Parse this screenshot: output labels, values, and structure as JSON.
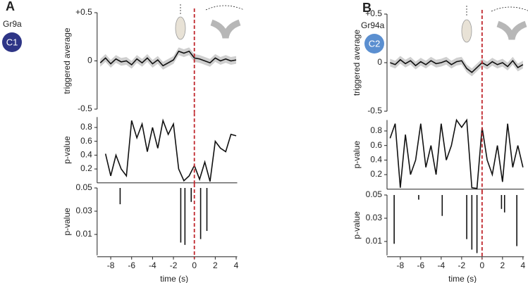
{
  "panels": [
    {
      "letter": "A",
      "genotype": "Gr9a",
      "cluster": "C1",
      "cluster_color": "#2e3586"
    },
    {
      "letter": "B",
      "genotype": "Gr94a",
      "cluster": "C2",
      "cluster_color": "#5b8fd0"
    }
  ],
  "chart_data": [
    {
      "type": "line",
      "ylabel": "triggered average",
      "color": "#111111",
      "band_color": "#cfcfcf",
      "error": 0.04,
      "x": [
        -9,
        -8.5,
        -8,
        -7.5,
        -7,
        -6.5,
        -6,
        -5.5,
        -5,
        -4.5,
        -4,
        -3.5,
        -3,
        -2.5,
        -2,
        -1.5,
        -1,
        -0.5,
        0,
        0.5,
        1,
        1.5,
        2,
        2.5,
        3,
        3.5,
        4
      ],
      "values": [
        -0.02,
        0.03,
        -0.03,
        0.02,
        -0.01,
        0.0,
        -0.04,
        0.02,
        -0.02,
        0.03,
        -0.03,
        0.01,
        -0.05,
        -0.02,
        0.01,
        0.1,
        0.08,
        0.1,
        0.03,
        0.02,
        0.0,
        -0.02,
        0.03,
        0.0,
        0.02,
        0.0,
        0.01
      ],
      "xlim": [
        -9.3,
        4.1
      ],
      "ylim": [
        -0.5,
        0.5
      ],
      "yticks": [
        {
          "value": 0.5,
          "label": "+0.5"
        },
        0,
        -0.5
      ],
      "vline": 0,
      "vline_color": "#c0272d"
    },
    {
      "type": "line",
      "ylabel": "p-value",
      "color": "#111111",
      "x": [
        -9,
        -8.5,
        -8,
        -7.5,
        -7,
        -6.5,
        -6,
        -5.5,
        -5,
        -4.5,
        -4,
        -3.5,
        -3,
        -2.5,
        -2,
        -1.5,
        -1,
        -0.5,
        0,
        0.5,
        1,
        1.5,
        2,
        2.5,
        3,
        3.5,
        4
      ],
      "values": [
        null,
        0.42,
        0.1,
        0.4,
        0.2,
        0.1,
        0.9,
        0.65,
        0.85,
        0.45,
        0.8,
        0.5,
        0.9,
        0.7,
        0.85,
        0.2,
        0.03,
        0.1,
        0.25,
        0.05,
        0.3,
        0.02,
        0.6,
        0.5,
        0.45,
        0.7,
        0.68
      ],
      "xlim": [
        -9.3,
        4.1
      ],
      "ylim": [
        0,
        0.95
      ],
      "yticks": [
        0.2,
        0.4,
        0.6,
        0.8
      ],
      "vline": 0,
      "vline_color": "#c0272d"
    },
    {
      "type": "spike",
      "ylabel": "p-value",
      "xlabel": "time (s)",
      "color": "#111111",
      "x": [
        -7.1,
        -1.3,
        -0.9,
        -0.3,
        0.6,
        1.2
      ],
      "values": [
        0.036,
        0.003,
        0.001,
        0.038,
        0.006,
        0.013
      ],
      "xlim": [
        -9.3,
        4.1
      ],
      "ylim": [
        -0.008,
        0.05
      ],
      "yticks": [
        0.01,
        0.03,
        0.05
      ],
      "xticks": [
        -8,
        -6,
        -4,
        -2,
        0,
        2,
        4
      ],
      "vline": 0,
      "vline_color": "#c0272d"
    },
    {
      "type": "line",
      "ylabel": "triggered average",
      "color": "#111111",
      "band_color": "#cfcfcf",
      "error": 0.04,
      "x": [
        -9,
        -8.5,
        -8,
        -7.5,
        -7,
        -6.5,
        -6,
        -5.5,
        -5,
        -4.5,
        -4,
        -3.5,
        -3,
        -2.5,
        -2,
        -1.5,
        -1,
        -0.5,
        0,
        0.5,
        1,
        1.5,
        2,
        2.5,
        3,
        3.5,
        4
      ],
      "values": [
        0.0,
        -0.02,
        0.03,
        -0.01,
        0.02,
        -0.03,
        0.01,
        -0.02,
        0.02,
        -0.01,
        0.0,
        0.02,
        -0.02,
        0.01,
        0.02,
        -0.06,
        -0.1,
        -0.05,
        0.0,
        -0.03,
        0.01,
        -0.02,
        0.0,
        -0.04,
        0.02,
        -0.05,
        -0.02
      ],
      "xlim": [
        -9.3,
        4.1
      ],
      "ylim": [
        -0.5,
        0.5
      ],
      "yticks": [
        {
          "value": 0.5,
          "label": "+0.5"
        },
        0,
        -0.5
      ],
      "vline": 0,
      "vline_color": "#c0272d"
    },
    {
      "type": "line",
      "ylabel": "p-value",
      "color": "#111111",
      "x": [
        -9,
        -8.5,
        -8,
        -7.5,
        -7,
        -6.5,
        -6,
        -5.5,
        -5,
        -4.5,
        -4,
        -3.5,
        -3,
        -2.5,
        -2,
        -1.5,
        -1,
        -0.5,
        0,
        0.5,
        1,
        1.5,
        2,
        2.5,
        3,
        3.5,
        4
      ],
      "values": [
        0.7,
        0.9,
        0.02,
        0.75,
        0.2,
        0.4,
        0.9,
        0.3,
        0.6,
        0.2,
        0.9,
        0.4,
        0.6,
        0.95,
        0.85,
        0.95,
        0.02,
        0.01,
        0.85,
        0.4,
        0.2,
        0.6,
        0.1,
        0.9,
        0.3,
        0.6,
        0.3
      ],
      "xlim": [
        -9.3,
        4.1
      ],
      "ylim": [
        0,
        0.95
      ],
      "yticks": [
        0.2,
        0.4,
        0.6,
        0.8
      ],
      "vline": 0,
      "vline_color": "#c0272d"
    },
    {
      "type": "spike",
      "ylabel": "p-value",
      "xlabel": "time (s)",
      "color": "#111111",
      "x": [
        -8.6,
        -6.2,
        -3.9,
        -1.5,
        -1.0,
        -0.5,
        1.9,
        2.2,
        3.4
      ],
      "values": [
        0.008,
        0.046,
        0.032,
        0.012,
        0.003,
        0.0,
        0.038,
        0.035,
        0.006
      ],
      "xlim": [
        -9.3,
        4.1
      ],
      "ylim": [
        -0.002,
        0.05
      ],
      "yticks": [
        0.01,
        0.03,
        0.05
      ],
      "xticks": [
        -8,
        -6,
        -4,
        -2,
        0,
        2,
        4
      ],
      "vline": 0,
      "vline_color": "#c0272d"
    }
  ]
}
